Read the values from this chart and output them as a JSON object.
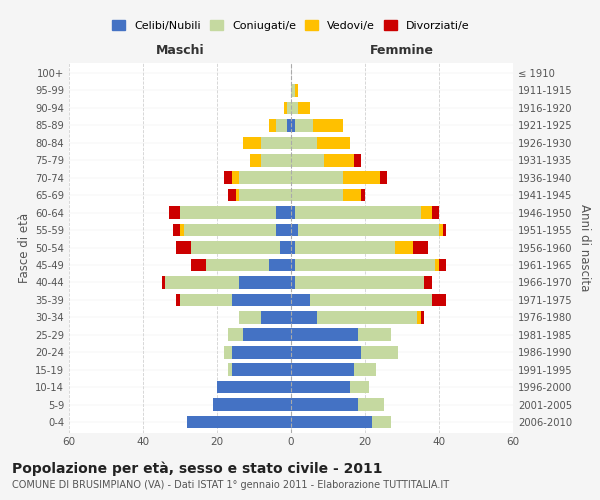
{
  "age_groups": [
    "0-4",
    "5-9",
    "10-14",
    "15-19",
    "20-24",
    "25-29",
    "30-34",
    "35-39",
    "40-44",
    "45-49",
    "50-54",
    "55-59",
    "60-64",
    "65-69",
    "70-74",
    "75-79",
    "80-84",
    "85-89",
    "90-94",
    "95-99",
    "100+"
  ],
  "birth_years": [
    "2006-2010",
    "2001-2005",
    "1996-2000",
    "1991-1995",
    "1986-1990",
    "1981-1985",
    "1976-1980",
    "1971-1975",
    "1966-1970",
    "1961-1965",
    "1956-1960",
    "1951-1955",
    "1946-1950",
    "1941-1945",
    "1936-1940",
    "1931-1935",
    "1926-1930",
    "1921-1925",
    "1916-1920",
    "1911-1915",
    "≤ 1910"
  ],
  "male": {
    "celibi": [
      28,
      21,
      20,
      16,
      16,
      13,
      8,
      16,
      14,
      6,
      3,
      4,
      4,
      0,
      0,
      0,
      0,
      1,
      0,
      0,
      0
    ],
    "coniugati": [
      0,
      0,
      0,
      1,
      2,
      4,
      6,
      14,
      20,
      17,
      24,
      25,
      26,
      14,
      14,
      8,
      8,
      3,
      1,
      0,
      0
    ],
    "vedovi": [
      0,
      0,
      0,
      0,
      0,
      0,
      0,
      0,
      0,
      0,
      0,
      1,
      0,
      1,
      2,
      3,
      5,
      2,
      1,
      0,
      0
    ],
    "divorziati": [
      0,
      0,
      0,
      0,
      0,
      0,
      0,
      1,
      1,
      4,
      4,
      2,
      3,
      2,
      2,
      0,
      0,
      0,
      0,
      0,
      0
    ]
  },
  "female": {
    "nubili": [
      22,
      18,
      16,
      17,
      19,
      18,
      7,
      5,
      1,
      1,
      1,
      2,
      1,
      0,
      0,
      0,
      0,
      1,
      0,
      0,
      0
    ],
    "coniugate": [
      5,
      7,
      5,
      6,
      10,
      9,
      27,
      33,
      35,
      38,
      27,
      38,
      34,
      14,
      14,
      9,
      7,
      5,
      2,
      1,
      0
    ],
    "vedove": [
      0,
      0,
      0,
      0,
      0,
      0,
      1,
      0,
      0,
      1,
      5,
      1,
      3,
      5,
      10,
      8,
      9,
      8,
      3,
      1,
      0
    ],
    "divorziate": [
      0,
      0,
      0,
      0,
      0,
      0,
      1,
      4,
      2,
      2,
      4,
      1,
      2,
      1,
      2,
      2,
      0,
      0,
      0,
      0,
      0
    ]
  },
  "colors": {
    "celibi": "#4472c4",
    "coniugati": "#c5d9a0",
    "vedovi": "#ffc000",
    "divorziati": "#cc0000"
  },
  "xlim": 60,
  "title": "Popolazione per età, sesso e stato civile - 2011",
  "subtitle": "COMUNE DI BRUSIMPIANO (VA) - Dati ISTAT 1° gennaio 2011 - Elaborazione TUTTITALIA.IT",
  "ylabel_left": "Fasce di età",
  "ylabel_right": "Anni di nascita",
  "xlabel_male": "Maschi",
  "xlabel_female": "Femmine",
  "bg_color": "#f5f5f5",
  "plot_bg_color": "#ffffff",
  "legend_labels": [
    "Celibi/Nubili",
    "Coniugati/e",
    "Vedovi/e",
    "Divorziati/e"
  ]
}
